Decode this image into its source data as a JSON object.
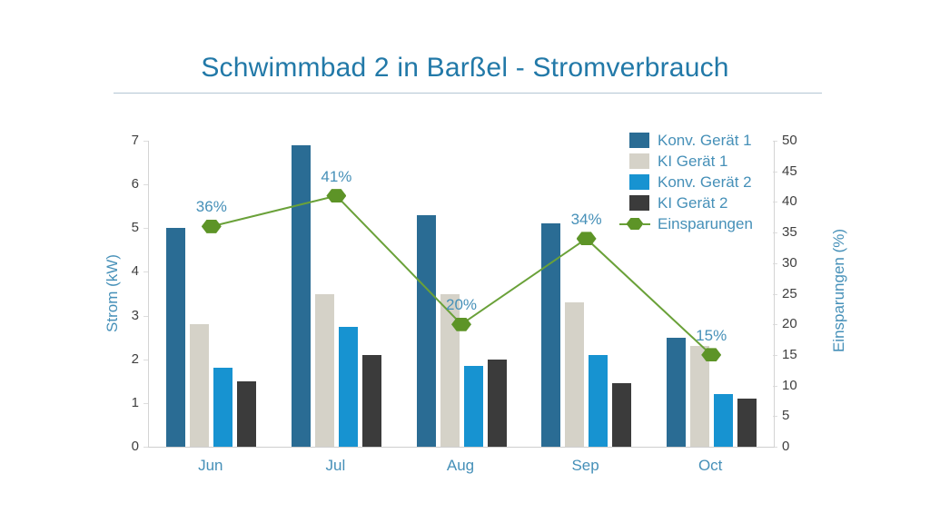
{
  "title": "Schwimmbad 2 in Barßel - Stromverbrauch",
  "colors": {
    "title_blue": "#2279a8",
    "label_blue": "#4690b8",
    "tick_dark": "#3f3f3f",
    "axis_line": "#d4d4d4",
    "title_underline": "#b3c6d4",
    "savings_line": "#6aa139",
    "savings_marker": "#5d9427"
  },
  "chart_data": {
    "type": "bar",
    "title": "Schwimmbad 2 in Barßel - Stromverbrauch",
    "categories": [
      "Jun",
      "Jul",
      "Aug",
      "Sep",
      "Oct"
    ],
    "series": [
      {
        "name": "Konv. Gerät 1",
        "color": "#2a6c94",
        "values": [
          5.0,
          6.9,
          5.3,
          5.1,
          2.5
        ]
      },
      {
        "name": "KI Gerät 1",
        "color": "#d5d2c8",
        "values": [
          2.8,
          3.5,
          3.5,
          3.3,
          2.3
        ]
      },
      {
        "name": "Konv. Gerät 2",
        "color": "#1793d1",
        "values": [
          1.8,
          2.75,
          1.85,
          2.1,
          1.2
        ]
      },
      {
        "name": "KI Gerät 2",
        "color": "#3b3b3b",
        "values": [
          1.5,
          2.1,
          2.0,
          1.45,
          1.1
        ]
      }
    ],
    "line_series": {
      "name": "Einsparungen",
      "axis": "right",
      "values": [
        36,
        41,
        20,
        34,
        15
      ],
      "labels": [
        "36%",
        "41%",
        "20%",
        "34%",
        "15%"
      ],
      "color": "#6aa139",
      "marker_color": "#5d9427",
      "marker_shape": "hexagon"
    },
    "ylabel_left": "Strom (kW)",
    "ylabel_right": "Einsparungen (%)",
    "ylim_left": [
      0,
      7
    ],
    "yticks_left": [
      0,
      1,
      2,
      3,
      4,
      5,
      6,
      7
    ],
    "ylim_right": [
      0,
      50
    ],
    "yticks_right": [
      0,
      5,
      10,
      15,
      20,
      25,
      30,
      35,
      40,
      45,
      50
    ],
    "grid": false,
    "legend_position": "top-right"
  }
}
